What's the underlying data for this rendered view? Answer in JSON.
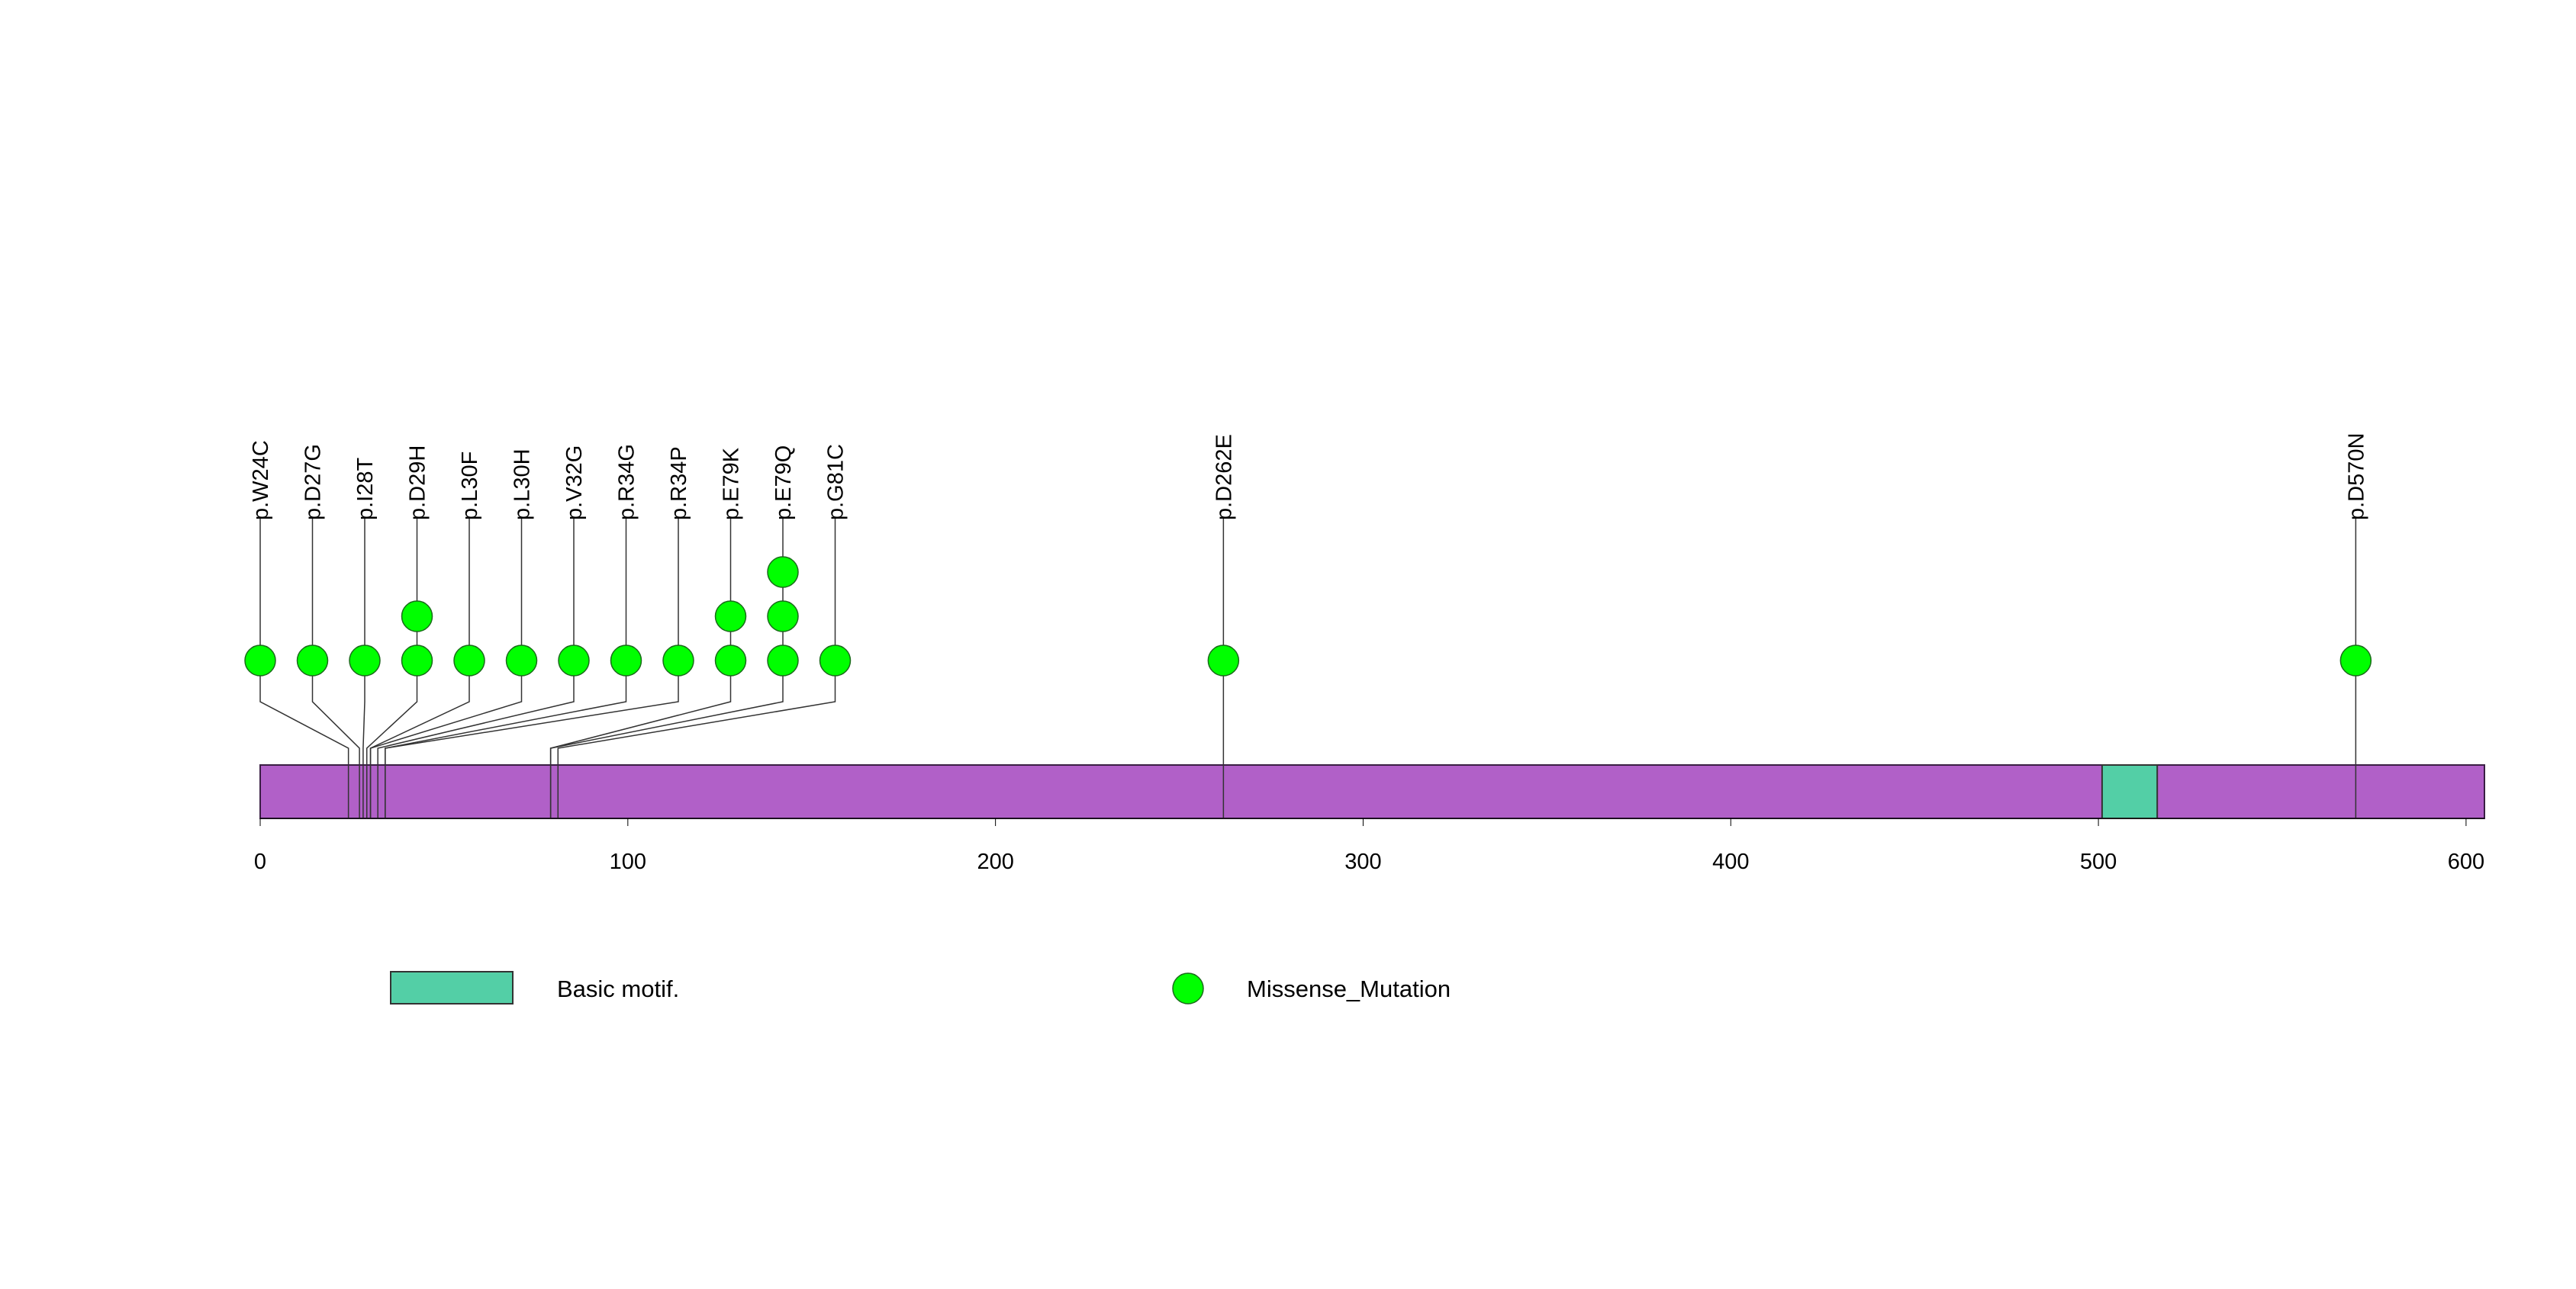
{
  "chart_data": {
    "type": "lollipop",
    "protein_length": 605,
    "xlim": [
      0,
      605
    ],
    "ticks": [
      0,
      100,
      200,
      300,
      400,
      500,
      600
    ],
    "tick_labels": [
      "0",
      "100",
      "200",
      "300",
      "400",
      "500",
      "600"
    ],
    "domains": [
      {
        "name": "Basic motif.",
        "start": 501,
        "end": 516,
        "color": "#53cfa6"
      }
    ],
    "mutations": [
      {
        "label": "p.W24C",
        "position": 24,
        "count": 1
      },
      {
        "label": "p.D27G",
        "position": 27,
        "count": 1
      },
      {
        "label": "p.I28T",
        "position": 28,
        "count": 1
      },
      {
        "label": "p.D29H",
        "position": 29,
        "count": 2
      },
      {
        "label": "p.L30F",
        "position": 30,
        "count": 1
      },
      {
        "label": "p.L30H",
        "position": 30,
        "count": 1
      },
      {
        "label": "p.V32G",
        "position": 32,
        "count": 1
      },
      {
        "label": "p.R34G",
        "position": 34,
        "count": 1
      },
      {
        "label": "p.R34P",
        "position": 34,
        "count": 1
      },
      {
        "label": "p.E79K",
        "position": 79,
        "count": 2
      },
      {
        "label": "p.E79Q",
        "position": 79,
        "count": 3
      },
      {
        "label": "p.G81C",
        "position": 81,
        "count": 1
      },
      {
        "label": "p.D262E",
        "position": 262,
        "count": 1
      },
      {
        "label": "p.D570N",
        "position": 570,
        "count": 1
      }
    ],
    "legend": [
      {
        "kind": "domain",
        "label": "Basic motif.",
        "color": "#53cfa6"
      },
      {
        "kind": "mutation",
        "label": "Missense_Mutation",
        "color": "#00ff00"
      }
    ],
    "colors": {
      "protein": "#b160c8",
      "missense": "#00ff00",
      "stem": "#333333"
    }
  }
}
